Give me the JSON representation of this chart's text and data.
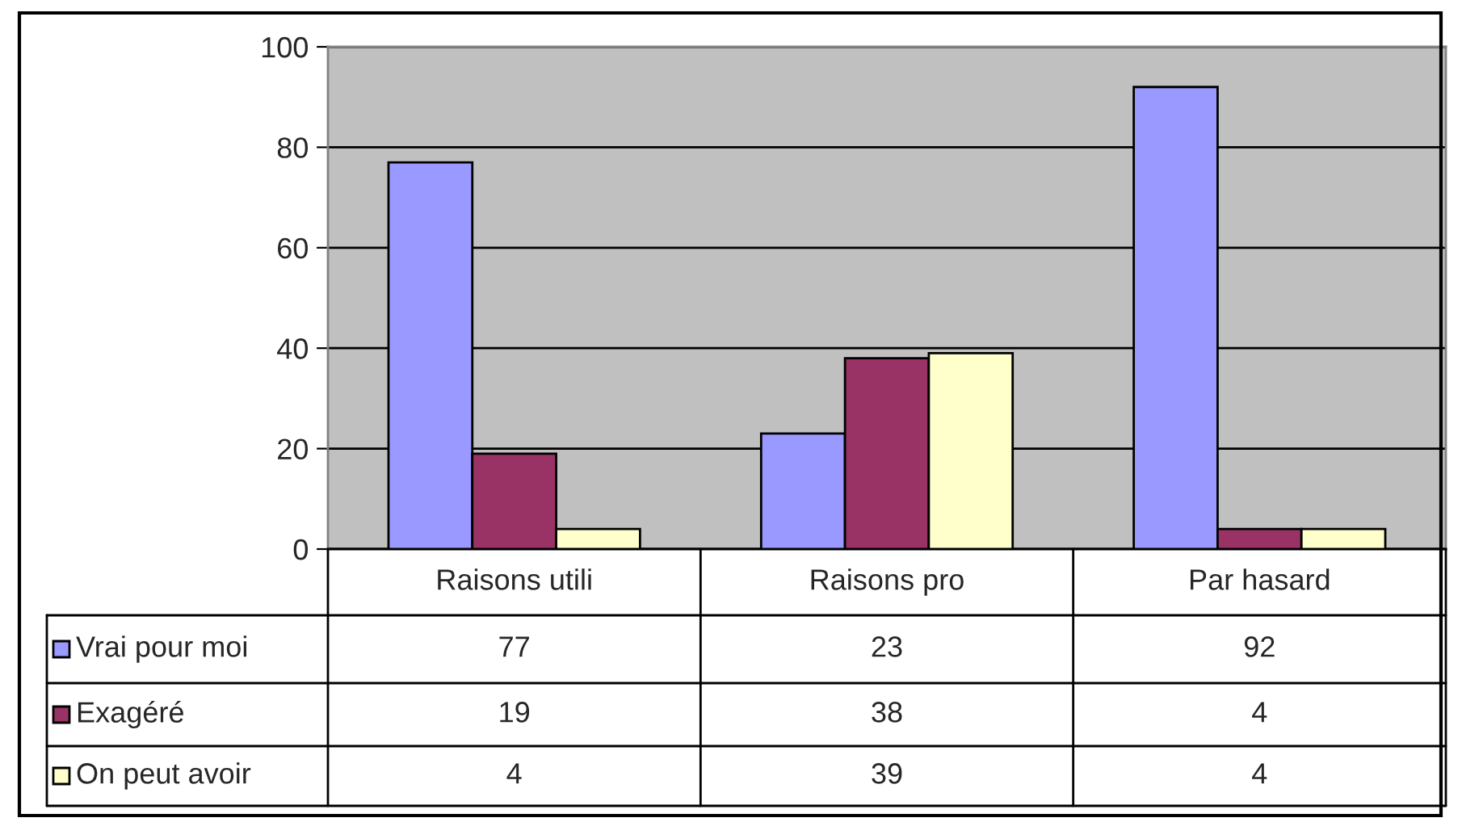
{
  "chart_data": {
    "type": "bar",
    "categories": [
      "Raisons utili",
      "Raisons pro",
      "Par hasard"
    ],
    "series": [
      {
        "name": "Vrai pour moi",
        "color": "#9999ff",
        "values": [
          77,
          23,
          92
        ]
      },
      {
        "name": "Exagéré",
        "color": "#993366",
        "values": [
          19,
          38,
          4
        ]
      },
      {
        "name": "On peut avoir",
        "color": "#ffffcc",
        "values": [
          4,
          39,
          4
        ]
      }
    ],
    "ylim": [
      0,
      100
    ],
    "yticks": [
      0,
      20,
      40,
      60,
      80,
      100
    ],
    "grid": "y",
    "data_labels": true,
    "legend": "bottom"
  }
}
